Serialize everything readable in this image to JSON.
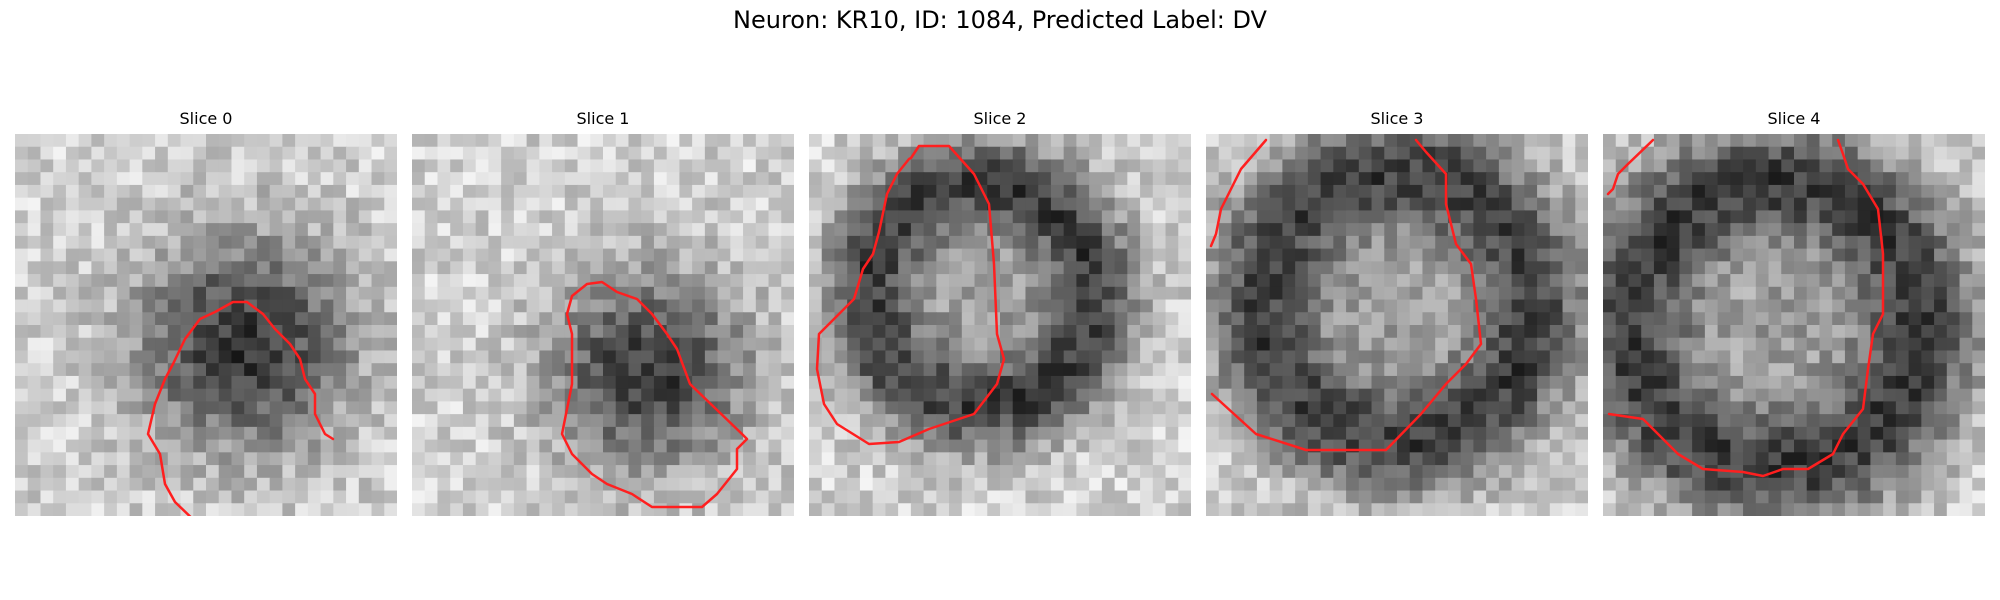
{
  "figure": {
    "title": "Neuron: KR10, ID: 1084, Predicted Label: DV"
  },
  "colors": {
    "contour": "#ff1f1f"
  },
  "panels": [
    {
      "title": "Slice 0"
    },
    {
      "title": "Slice 1"
    },
    {
      "title": "Slice 2"
    },
    {
      "title": "Slice 3"
    },
    {
      "title": "Slice 4"
    }
  ]
}
